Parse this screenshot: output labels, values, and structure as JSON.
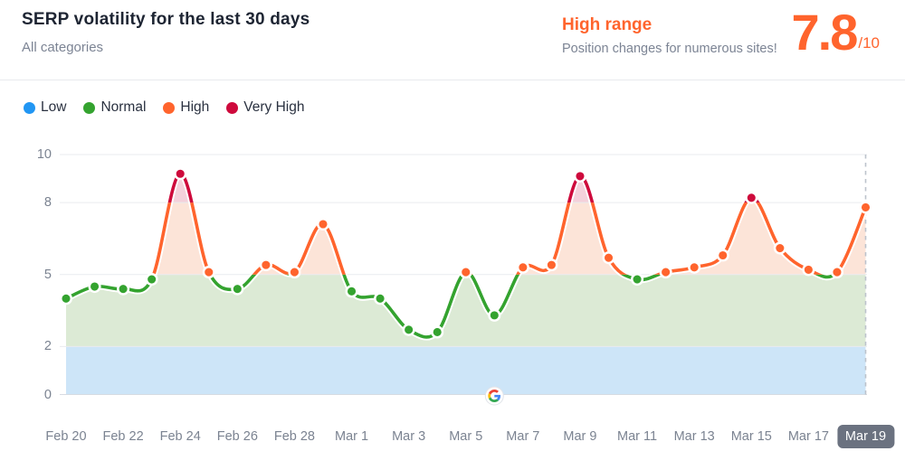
{
  "header": {
    "title": "SERP volatility for the last 30 days",
    "subtitle": "All categories",
    "range_label": "High range",
    "range_description": "Position changes for numerous sites!",
    "score": "7.8",
    "score_suffix": "/10",
    "accent_color": "#FF642D"
  },
  "legend": [
    {
      "label": "Low",
      "color": "#2196F3"
    },
    {
      "label": "Normal",
      "color": "#34A32F"
    },
    {
      "label": "High",
      "color": "#FF642D"
    },
    {
      "label": "Very High",
      "color": "#CE0A3C"
    }
  ],
  "chart_data": {
    "type": "line",
    "title": "SERP volatility for the last 30 days",
    "x": [
      "Feb 20",
      "Feb 21",
      "Feb 22",
      "Feb 23",
      "Feb 24",
      "Feb 25",
      "Feb 26",
      "Feb 27",
      "Feb 28",
      "Feb 29",
      "Mar 1",
      "Mar 2",
      "Mar 3",
      "Mar 4",
      "Mar 5",
      "Mar 6",
      "Mar 7",
      "Mar 8",
      "Mar 9",
      "Mar 10",
      "Mar 11",
      "Mar 12",
      "Mar 13",
      "Mar 14",
      "Mar 15",
      "Mar 16",
      "Mar 17",
      "Mar 18",
      "Mar 19"
    ],
    "values": [
      4.0,
      4.5,
      4.4,
      4.8,
      9.2,
      5.1,
      4.4,
      5.4,
      5.1,
      7.1,
      4.3,
      4.0,
      2.7,
      2.6,
      5.1,
      3.3,
      5.3,
      5.4,
      9.1,
      5.7,
      4.8,
      5.1,
      5.3,
      5.8,
      8.2,
      6.1,
      5.2,
      5.1,
      7.8
    ],
    "x_tick_labels": [
      "Feb 20",
      "Feb 22",
      "Feb 24",
      "Feb 26",
      "Feb 28",
      "Mar 1",
      "Mar 3",
      "Mar 5",
      "Mar 7",
      "Mar 9",
      "Mar 11",
      "Mar 13",
      "Mar 15",
      "Mar 17",
      "Mar 19"
    ],
    "highlighted_x": "Mar 19",
    "y_ticks": [
      0,
      2,
      5,
      8,
      10
    ],
    "ylim": [
      0,
      10
    ],
    "grid": true,
    "legend_position": "top-left",
    "levels": [
      {
        "name": "low",
        "max": 2,
        "color": "#2196F3",
        "fill": "#CDE5F8"
      },
      {
        "name": "normal",
        "max": 5,
        "color": "#34A32F",
        "fill": "#DCEAD5"
      },
      {
        "name": "high",
        "max": 8,
        "color": "#FF642D",
        "fill": "#FCE4D8"
      },
      {
        "name": "very_high",
        "max": 10,
        "color": "#CE0A3C",
        "fill": "#F4D1DB"
      }
    ],
    "annotations": [
      {
        "icon": "google-icon",
        "x": "Mar 6",
        "y": 0
      }
    ]
  }
}
